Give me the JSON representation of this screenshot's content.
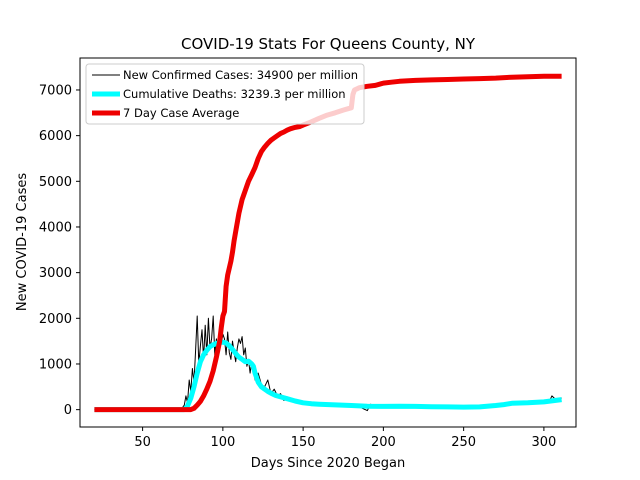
{
  "chart_data": {
    "type": "line",
    "title": "COVID-19 Stats For Queens County, NY",
    "xlabel": "Days Since 2020 Began",
    "ylabel": "New COVID-19 Cases",
    "xlim": [
      11,
      320
    ],
    "ylim": [
      -380,
      7700
    ],
    "xticks": [
      50,
      100,
      150,
      200,
      250,
      300
    ],
    "yticks": [
      0,
      1000,
      2000,
      3000,
      4000,
      5000,
      6000,
      7000
    ],
    "grid": false,
    "legend_position": "top-left",
    "series": [
      {
        "name": "New Confirmed Cases: 34900 per million",
        "color": "#000000",
        "points": [
          [
            20,
            0
          ],
          [
            40,
            0
          ],
          [
            60,
            0
          ],
          [
            74,
            0
          ],
          [
            76,
            100
          ],
          [
            77,
            300
          ],
          [
            78,
            150
          ],
          [
            79,
            650
          ],
          [
            80,
            400
          ],
          [
            81,
            900
          ],
          [
            82,
            600
          ],
          [
            83,
            1300
          ],
          [
            84,
            2050
          ],
          [
            85,
            1000
          ],
          [
            86,
            1400
          ],
          [
            87,
            1750
          ],
          [
            88,
            1100
          ],
          [
            89,
            1850
          ],
          [
            90,
            1200
          ],
          [
            91,
            2000
          ],
          [
            92,
            1350
          ],
          [
            93,
            1550
          ],
          [
            94,
            2050
          ],
          [
            95,
            1200
          ],
          [
            96,
            1550
          ],
          [
            97,
            1350
          ],
          [
            98,
            1700
          ],
          [
            99,
            1450
          ],
          [
            100,
            1650
          ],
          [
            101,
            1550
          ],
          [
            102,
            1200
          ],
          [
            103,
            1700
          ],
          [
            104,
            1250
          ],
          [
            105,
            1100
          ],
          [
            106,
            1500
          ],
          [
            107,
            1250
          ],
          [
            108,
            1050
          ],
          [
            109,
            1350
          ],
          [
            110,
            1550
          ],
          [
            111,
            1450
          ],
          [
            112,
            1600
          ],
          [
            113,
            1200
          ],
          [
            114,
            1350
          ],
          [
            115,
            950
          ],
          [
            116,
            1100
          ],
          [
            117,
            800
          ],
          [
            118,
            1050
          ],
          [
            119,
            950
          ],
          [
            120,
            650
          ],
          [
            122,
            800
          ],
          [
            124,
            550
          ],
          [
            126,
            500
          ],
          [
            128,
            650
          ],
          [
            130,
            350
          ],
          [
            132,
            450
          ],
          [
            134,
            300
          ],
          [
            136,
            350
          ],
          [
            138,
            200
          ],
          [
            140,
            280
          ],
          [
            142,
            200
          ],
          [
            145,
            220
          ],
          [
            150,
            140
          ],
          [
            155,
            170
          ],
          [
            160,
            120
          ],
          [
            165,
            90
          ],
          [
            170,
            100
          ],
          [
            175,
            80
          ],
          [
            180,
            110
          ],
          [
            185,
            60
          ],
          [
            190,
            -20
          ],
          [
            192,
            120
          ],
          [
            195,
            80
          ],
          [
            200,
            60
          ],
          [
            210,
            80
          ],
          [
            220,
            70
          ],
          [
            230,
            60
          ],
          [
            240,
            60
          ],
          [
            250,
            50
          ],
          [
            260,
            70
          ],
          [
            270,
            80
          ],
          [
            275,
            120
          ],
          [
            280,
            160
          ],
          [
            285,
            120
          ],
          [
            290,
            170
          ],
          [
            295,
            150
          ],
          [
            300,
            200
          ],
          [
            303,
            150
          ],
          [
            305,
            300
          ],
          [
            308,
            200
          ],
          [
            311,
            260
          ]
        ]
      },
      {
        "name": "Cumulative Deaths: 3239.3 per million",
        "color": "#00ffff",
        "points": [
          [
            20,
            0
          ],
          [
            60,
            0
          ],
          [
            76,
            0
          ],
          [
            78,
            80
          ],
          [
            80,
            250
          ],
          [
            82,
            500
          ],
          [
            84,
            800
          ],
          [
            86,
            1050
          ],
          [
            88,
            1200
          ],
          [
            90,
            1300
          ],
          [
            92,
            1380
          ],
          [
            94,
            1420
          ],
          [
            96,
            1450
          ],
          [
            98,
            1470
          ],
          [
            100,
            1480
          ],
          [
            102,
            1460
          ],
          [
            104,
            1400
          ],
          [
            106,
            1320
          ],
          [
            108,
            1230
          ],
          [
            110,
            1150
          ],
          [
            112,
            1100
          ],
          [
            114,
            1050
          ],
          [
            116,
            1060
          ],
          [
            118,
            1000
          ],
          [
            119,
            950
          ],
          [
            120,
            800
          ],
          [
            122,
            600
          ],
          [
            124,
            500
          ],
          [
            126,
            450
          ],
          [
            128,
            400
          ],
          [
            130,
            360
          ],
          [
            133,
            310
          ],
          [
            136,
            280
          ],
          [
            140,
            240
          ],
          [
            145,
            190
          ],
          [
            150,
            150
          ],
          [
            155,
            130
          ],
          [
            160,
            120
          ],
          [
            170,
            105
          ],
          [
            180,
            90
          ],
          [
            190,
            75
          ],
          [
            200,
            70
          ],
          [
            210,
            75
          ],
          [
            220,
            70
          ],
          [
            230,
            65
          ],
          [
            240,
            60
          ],
          [
            250,
            55
          ],
          [
            260,
            60
          ],
          [
            270,
            90
          ],
          [
            275,
            110
          ],
          [
            280,
            140
          ],
          [
            290,
            150
          ],
          [
            300,
            170
          ],
          [
            311,
            220
          ]
        ]
      },
      {
        "name": "7 Day Case Average",
        "color": "#ee0000",
        "points": [
          [
            20,
            0
          ],
          [
            70,
            0
          ],
          [
            80,
            0
          ],
          [
            82,
            30
          ],
          [
            84,
            100
          ],
          [
            86,
            180
          ],
          [
            88,
            300
          ],
          [
            90,
            450
          ],
          [
            92,
            620
          ],
          [
            94,
            850
          ],
          [
            96,
            1150
          ],
          [
            98,
            1500
          ],
          [
            99,
            1800
          ],
          [
            100,
            2050
          ],
          [
            101,
            2150
          ],
          [
            102,
            2700
          ],
          [
            103,
            2950
          ],
          [
            104,
            3100
          ],
          [
            105,
            3250
          ],
          [
            106,
            3450
          ],
          [
            107,
            3700
          ],
          [
            108,
            3900
          ],
          [
            109,
            4100
          ],
          [
            110,
            4300
          ],
          [
            111,
            4450
          ],
          [
            112,
            4600
          ],
          [
            113,
            4700
          ],
          [
            114,
            4800
          ],
          [
            115,
            4900
          ],
          [
            116,
            5000
          ],
          [
            118,
            5150
          ],
          [
            120,
            5300
          ],
          [
            122,
            5500
          ],
          [
            124,
            5650
          ],
          [
            126,
            5750
          ],
          [
            128,
            5830
          ],
          [
            130,
            5900
          ],
          [
            132,
            5950
          ],
          [
            134,
            6000
          ],
          [
            136,
            6050
          ],
          [
            138,
            6080
          ],
          [
            140,
            6120
          ],
          [
            142,
            6150
          ],
          [
            145,
            6180
          ],
          [
            148,
            6200
          ],
          [
            150,
            6230
          ],
          [
            155,
            6300
          ],
          [
            160,
            6380
          ],
          [
            165,
            6450
          ],
          [
            170,
            6500
          ],
          [
            175,
            6560
          ],
          [
            178,
            6590
          ],
          [
            180,
            6610
          ],
          [
            181,
            6900
          ],
          [
            182,
            7000
          ],
          [
            185,
            7050
          ],
          [
            190,
            7080
          ],
          [
            195,
            7100
          ],
          [
            200,
            7150
          ],
          [
            205,
            7170
          ],
          [
            210,
            7190
          ],
          [
            220,
            7210
          ],
          [
            230,
            7220
          ],
          [
            240,
            7230
          ],
          [
            250,
            7240
          ],
          [
            260,
            7250
          ],
          [
            270,
            7260
          ],
          [
            280,
            7280
          ],
          [
            290,
            7290
          ],
          [
            300,
            7300
          ],
          [
            311,
            7300
          ]
        ]
      }
    ]
  }
}
